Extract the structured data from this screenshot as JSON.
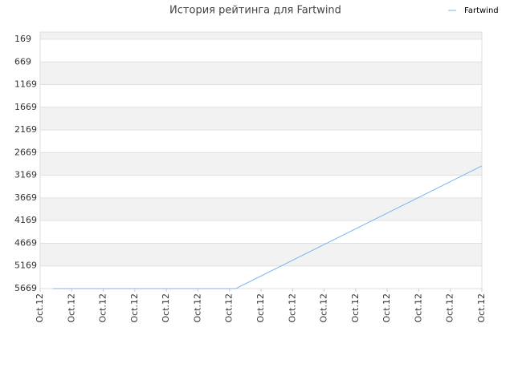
{
  "chart_data": {
    "type": "line",
    "title": "История рейтинга для Fartwind",
    "x": [
      0.4,
      6.2,
      14
    ],
    "series": [
      {
        "name": "Fartwind",
        "color": "#7cb5ec",
        "values": [
          5669,
          5669,
          2963
        ]
      }
    ],
    "xlim": [
      0,
      14
    ],
    "xticks": [
      {
        "value": 0,
        "label": "Oct.12"
      },
      {
        "value": 1,
        "label": "Oct.12"
      },
      {
        "value": 2,
        "label": "Oct.12"
      },
      {
        "value": 3,
        "label": "Oct.12"
      },
      {
        "value": 4,
        "label": "Oct.12"
      },
      {
        "value": 5,
        "label": "Oct.12"
      },
      {
        "value": 6,
        "label": "Oct.12"
      },
      {
        "value": 7,
        "label": "Oct.12"
      },
      {
        "value": 8,
        "label": "Oct.12"
      },
      {
        "value": 9,
        "label": "Oct.12"
      },
      {
        "value": 10,
        "label": "Oct.12"
      },
      {
        "value": 11,
        "label": "Oct.12"
      },
      {
        "value": 12,
        "label": "Oct.12"
      },
      {
        "value": 13,
        "label": "Oct.12"
      },
      {
        "value": 14,
        "label": "Oct.12"
      }
    ],
    "ylim": [
      10,
      5669
    ],
    "y_inverted": true,
    "yticks": [
      169,
      669,
      1169,
      1669,
      2169,
      2669,
      3169,
      3669,
      4169,
      4669,
      5169,
      5669
    ],
    "grid": true,
    "legend": "top-right"
  }
}
